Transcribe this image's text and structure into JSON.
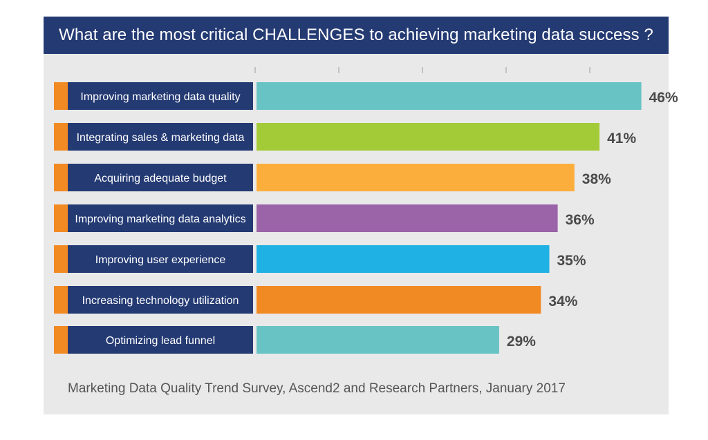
{
  "title": "What are the most critical CHALLENGES to achieving marketing data success ?",
  "source": "Marketing Data Quality Trend Survey, Ascend2 and Research Partners, January 2017",
  "colors": {
    "header": "#243a73",
    "label_box": "#243a73",
    "label_accent": "#f28a24",
    "panel": "#e9e9ea",
    "value_text": "#4a4a4a"
  },
  "chart_data": {
    "type": "bar",
    "orientation": "horizontal",
    "categories": [
      "Improving marketing data quality",
      "Integrating sales & marketing data",
      "Acquiring adequate budget",
      "Improving marketing data analytics",
      "Improving user experience",
      "Increasing technology utilization",
      "Optimizing lead funnel"
    ],
    "values": [
      46,
      41,
      38,
      36,
      35,
      34,
      29
    ],
    "value_labels": [
      "46%",
      "41%",
      "38%",
      "36%",
      "35%",
      "34%",
      "29%"
    ],
    "bar_colors": [
      "#67c3c4",
      "#a3cb38",
      "#fbae3c",
      "#9b63a8",
      "#1fb1e3",
      "#f28a24",
      "#67c3c4"
    ],
    "xlim": [
      0,
      50
    ],
    "gridlines": false
  }
}
